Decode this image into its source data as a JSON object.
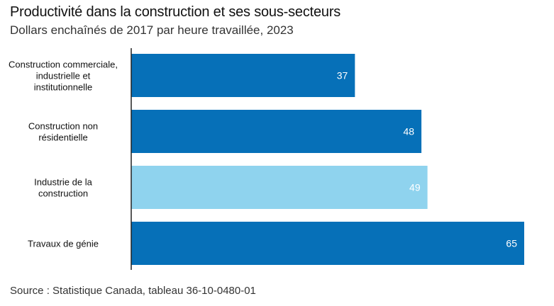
{
  "title": "Productivité dans la construction et ses sous-secteurs",
  "subtitle": "Dollars enchaînés de 2017 par heure travaillée, 2023",
  "source": "Source : Statistique Canada, tableau 36-10-0480-01",
  "chart_data": {
    "type": "bar",
    "orientation": "horizontal",
    "categories": [
      "Construction commerciale, industrielle et institutionnelle",
      "Construction non résidentielle",
      "Industrie de la construction",
      "Travaux de génie"
    ],
    "category_label_lines": [
      [
        "Construction commerciale,",
        "industrielle et",
        "institutionnelle"
      ],
      [
        "Construction non",
        "résidentielle"
      ],
      [
        "Industrie de la",
        "construction"
      ],
      [
        "Travaux de génie"
      ]
    ],
    "values": [
      37,
      48,
      49,
      65
    ],
    "highlight_index": 2,
    "colors": {
      "bar": "#0670b8",
      "highlight": "#8fd3ee",
      "axis": "#222222"
    },
    "xlim": [
      0,
      65
    ],
    "grid": false,
    "data_labels": true
  }
}
